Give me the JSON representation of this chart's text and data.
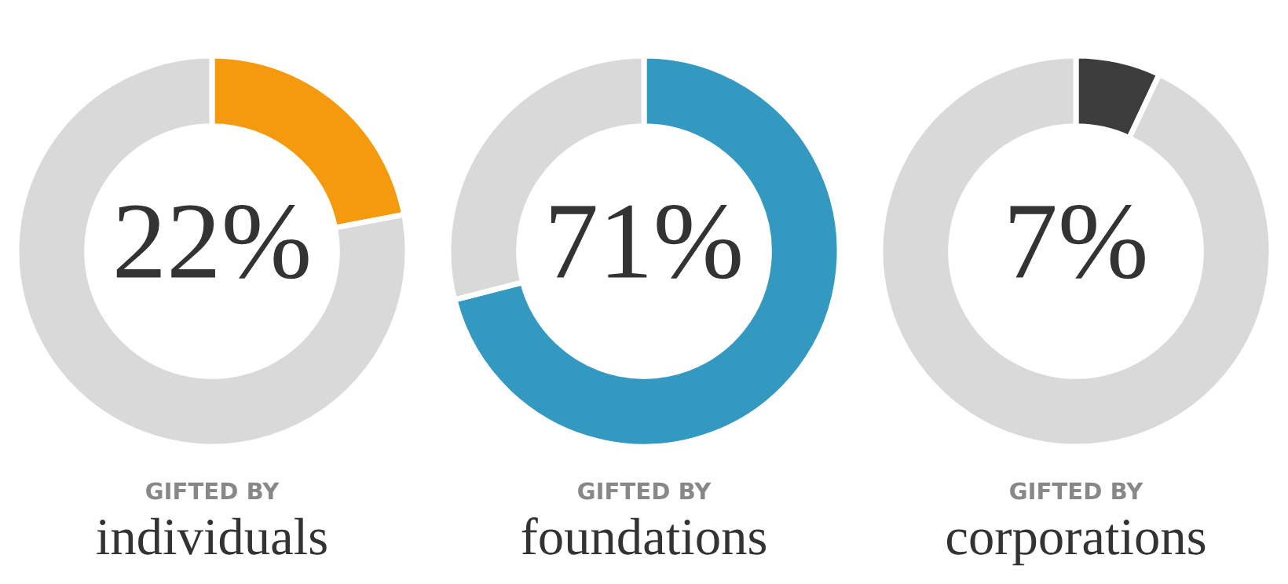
{
  "chart_data": [
    {
      "type": "donut",
      "subtitle": "GIFTED BY",
      "title": "individuals",
      "categories": [
        null,
        null
      ],
      "values": [
        22,
        78
      ],
      "colors": [
        "#f59a0d",
        "#d9d9d9"
      ],
      "value_labels": [
        "22%",
        null
      ]
    },
    {
      "type": "donut",
      "subtitle": "GIFTED BY",
      "title": "foundations",
      "categories": [
        null,
        null
      ],
      "values": [
        71,
        29
      ],
      "colors": [
        "#3399c0",
        "#d9d9d9"
      ],
      "value_labels": [
        "71%",
        null
      ]
    },
    {
      "type": "donut",
      "subtitle": "GIFTED BY",
      "title": "corporations",
      "categories": [
        null,
        null
      ],
      "values": [
        7,
        93
      ],
      "colors": [
        "#3c3c3c",
        "#d9d9d9"
      ],
      "value_labels": [
        "7%",
        null
      ]
    }
  ]
}
